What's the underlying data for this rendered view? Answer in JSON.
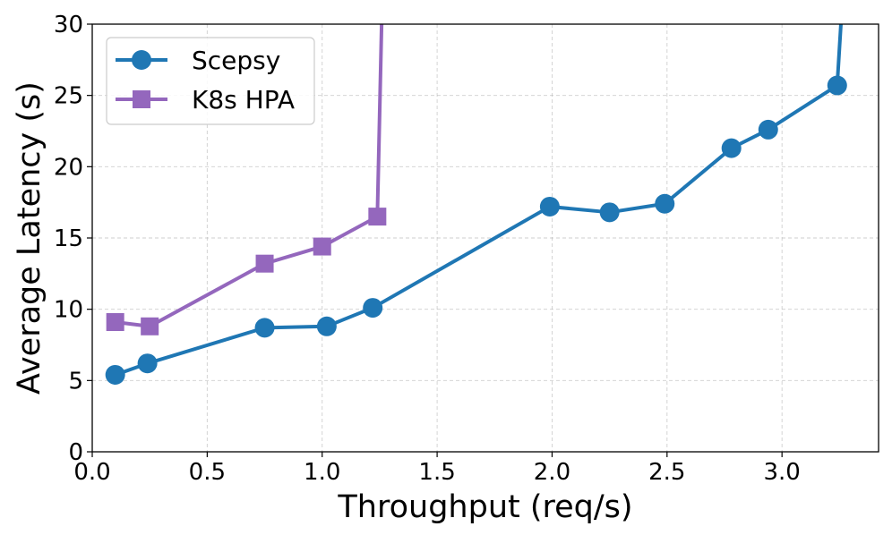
{
  "chart_data": {
    "type": "line",
    "title": "",
    "xlabel": "Throughput (req/s)",
    "ylabel": "Average Latency (s)",
    "xlim": [
      0.0,
      3.42
    ],
    "ylim": [
      0,
      30
    ],
    "xticks": [
      0.0,
      0.5,
      1.0,
      1.5,
      2.0,
      2.5,
      3.0
    ],
    "xtick_labels": [
      "0.0",
      "0.5",
      "1.0",
      "1.5",
      "2.0",
      "2.5",
      "3.0"
    ],
    "yticks": [
      0,
      5,
      10,
      15,
      20,
      25,
      30
    ],
    "ytick_labels": [
      "0",
      "5",
      "10",
      "15",
      "20",
      "25",
      "30"
    ],
    "grid": true,
    "legend_position": "top-left",
    "series": [
      {
        "name": "Scepsy",
        "color": "#1f77b4",
        "marker": "circle",
        "x": [
          0.1,
          0.24,
          0.75,
          1.02,
          1.22,
          1.99,
          2.25,
          2.49,
          2.78,
          2.94,
          3.24
        ],
        "y": [
          5.4,
          6.2,
          8.7,
          8.8,
          10.1,
          17.2,
          16.8,
          17.4,
          21.3,
          22.6,
          25.7
        ],
        "tail": {
          "x": 3.26,
          "y": 31
        }
      },
      {
        "name": "K8s HPA",
        "color": "#9467bd",
        "marker": "square",
        "x": [
          0.1,
          0.25,
          0.75,
          1.0,
          1.24
        ],
        "y": [
          9.1,
          8.8,
          13.2,
          14.4,
          16.5
        ],
        "tail": {
          "x": 1.26,
          "y": 31
        }
      }
    ]
  }
}
